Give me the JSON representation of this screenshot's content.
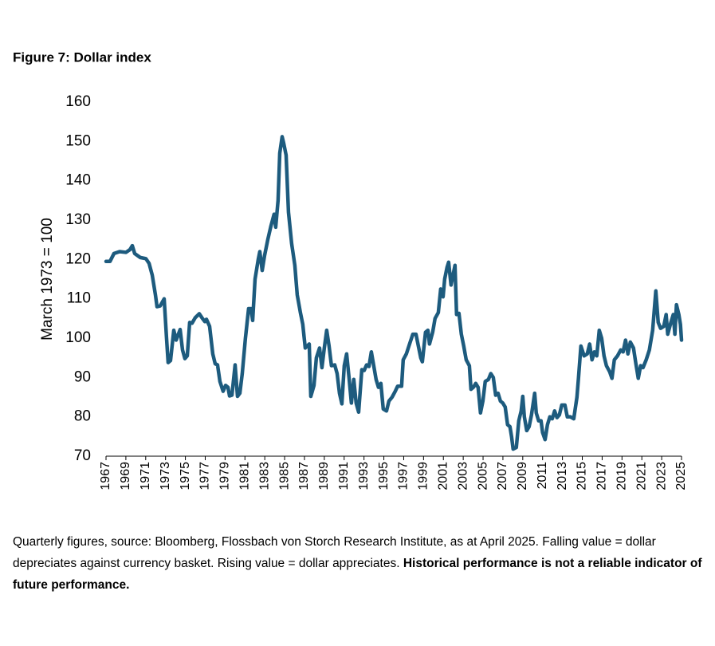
{
  "chart_data": {
    "type": "line",
    "title": "Figure 7: Dollar index",
    "y_label": "March 1973 = 100",
    "footnote": {
      "text": "Quarterly figures, source: Bloomberg, Flossbach von Storch Research Institute, as at April 2025. Falling value = dollar depreciates against currency basket. Rising value = dollar appreciates.",
      "bold": "Historical performance is not a reliable indicator of future performance."
    },
    "x": [
      1967.0,
      1967.4,
      1967.8,
      1968.37,
      1969.01,
      1969.41,
      1969.65,
      1969.89,
      1970.45,
      1971.02,
      1971.34,
      1971.66,
      1971.98,
      1972.14,
      1972.46,
      1972.86,
      1973.1,
      1973.26,
      1973.5,
      1973.83,
      1974.07,
      1974.47,
      1974.71,
      1974.95,
      1975.19,
      1975.43,
      1975.67,
      1975.99,
      1976.4,
      1976.72,
      1976.96,
      1977.12,
      1977.44,
      1977.76,
      1978.0,
      1978.24,
      1978.48,
      1978.8,
      1979.05,
      1979.29,
      1979.45,
      1979.69,
      1980.01,
      1980.25,
      1980.49,
      1980.73,
      1981.05,
      1981.37,
      1981.61,
      1981.78,
      1982.02,
      1982.34,
      1982.5,
      1982.74,
      1982.98,
      1983.3,
      1983.62,
      1983.94,
      1984.1,
      1984.34,
      1984.51,
      1984.75,
      1984.91,
      1985.15,
      1985.39,
      1985.71,
      1986.03,
      1986.27,
      1986.59,
      1986.83,
      1987.08,
      1987.48,
      1987.64,
      1987.96,
      1988.2,
      1988.52,
      1988.76,
      1989.0,
      1989.24,
      1989.48,
      1989.72,
      1990.05,
      1990.29,
      1990.53,
      1990.77,
      1991.01,
      1991.25,
      1991.49,
      1991.73,
      1991.97,
      1992.21,
      1992.46,
      1992.78,
      1993.02,
      1993.26,
      1993.5,
      1993.74,
      1993.98,
      1994.22,
      1994.46,
      1994.7,
      1994.94,
      1995.27,
      1995.51,
      1995.83,
      1996.15,
      1996.39,
      1996.79,
      1996.95,
      1997.27,
      1997.59,
      1997.92,
      1998.24,
      1998.48,
      1998.72,
      1998.88,
      1999.2,
      1999.44,
      1999.6,
      1999.92,
      2000.16,
      2000.49,
      2000.73,
      2000.97,
      2001.13,
      2001.37,
      2001.53,
      2001.77,
      2002.01,
      2002.17,
      2002.33,
      2002.57,
      2002.81,
      2003.05,
      2003.3,
      2003.62,
      2003.78,
      2004.02,
      2004.26,
      2004.5,
      2004.74,
      2004.98,
      2005.22,
      2005.54,
      2005.78,
      2006.03,
      2006.27,
      2006.51,
      2006.75,
      2006.99,
      2007.23,
      2007.47,
      2007.71,
      2007.87,
      2008.03,
      2008.35,
      2008.6,
      2008.84,
      2009.0,
      2009.16,
      2009.4,
      2009.64,
      2009.88,
      2010.2,
      2010.36,
      2010.6,
      2010.84,
      2011.0,
      2011.25,
      2011.49,
      2011.73,
      2011.97,
      2012.21,
      2012.45,
      2012.69,
      2012.93,
      2013.25,
      2013.49,
      2013.81,
      2014.14,
      2014.46,
      2014.62,
      2014.86,
      2015.18,
      2015.5,
      2015.74,
      2015.98,
      2016.22,
      2016.46,
      2016.71,
      2016.95,
      2017.19,
      2017.43,
      2017.75,
      2017.99,
      2018.23,
      2018.55,
      2018.87,
      2019.11,
      2019.36,
      2019.6,
      2019.84,
      2020.16,
      2020.4,
      2020.64,
      2020.88,
      2021.12,
      2021.44,
      2021.76,
      2022.09,
      2022.25,
      2022.41,
      2022.65,
      2022.89,
      2023.21,
      2023.45,
      2023.61,
      2023.93,
      2024.17,
      2024.33,
      2024.49,
      2024.73,
      2024.89,
      2025.0
    ],
    "series": [
      {
        "color": "#1d5b7e",
        "values": [
          119.5,
          119.5,
          121.5,
          122,
          121.8,
          122.5,
          123.5,
          121.5,
          120.5,
          120.2,
          119,
          116,
          111,
          108,
          108.2,
          110,
          100,
          93.8,
          94.3,
          102,
          99.5,
          102.2,
          97,
          94.8,
          95.5,
          104,
          103.8,
          105.2,
          106.2,
          105,
          104.2,
          104.8,
          103,
          96,
          93.5,
          93.2,
          89,
          86.5,
          88,
          87.5,
          85.3,
          85.5,
          93.2,
          85.2,
          86,
          91,
          100,
          107.5,
          107.5,
          104.5,
          115,
          120,
          122,
          117.2,
          121,
          125,
          128.5,
          131.5,
          128.2,
          135,
          147,
          151.2,
          149.5,
          146.5,
          132,
          124,
          118.5,
          111,
          106.5,
          103.5,
          97.5,
          98.5,
          85.2,
          88,
          95,
          97.5,
          92.5,
          97.5,
          102,
          98,
          93,
          93.2,
          91,
          86,
          83.3,
          93,
          96,
          90,
          83.5,
          89.5,
          83.5,
          81.2,
          92,
          91.8,
          93.2,
          92.8,
          96.5,
          93,
          89.5,
          87.5,
          88.5,
          82,
          81.5,
          84,
          85,
          86.5,
          87.8,
          87.8,
          94.5,
          96,
          98.5,
          101,
          101,
          98,
          95,
          94,
          101.5,
          102,
          98.5,
          101.5,
          105,
          106.5,
          112.5,
          110.5,
          115,
          118,
          119.3,
          113.5,
          116.5,
          118.5,
          106,
          106.3,
          101,
          98,
          94.5,
          93,
          87,
          87.5,
          88.5,
          87.5,
          81,
          84,
          89,
          89.5,
          91,
          90,
          85.5,
          86,
          84,
          83.5,
          82.5,
          78,
          77.5,
          75,
          71.8,
          72.2,
          79,
          81.5,
          85.2,
          80,
          76.5,
          77.5,
          80.5,
          86,
          81,
          79,
          79,
          76,
          74.2,
          78,
          80,
          79.5,
          81.5,
          79.8,
          80.5,
          83,
          83,
          80,
          80,
          79.5,
          85,
          90,
          98,
          95.5,
          96,
          98.5,
          94.5,
          96.5,
          95.5,
          102,
          100,
          95.5,
          93,
          91.5,
          89.8,
          94.5,
          95.5,
          97,
          96.5,
          99.5,
          96,
          99,
          97.5,
          93.5,
          89.8,
          93,
          92.5,
          94.5,
          97,
          102,
          107,
          112,
          104,
          102.5,
          103,
          106,
          101,
          104,
          106,
          101,
          108.5,
          106,
          103.5,
          99.5
        ]
      }
    ],
    "xlim": [
      1967,
      2025
    ],
    "xticks": [
      1967,
      1969,
      1971,
      1973,
      1975,
      1977,
      1979,
      1981,
      1983,
      1985,
      1987,
      1989,
      1991,
      1993,
      1995,
      1997,
      1999,
      2001,
      2003,
      2005,
      2007,
      2009,
      2011,
      2013,
      2015,
      2017,
      2019,
      2021,
      2023,
      2025
    ],
    "ylim": [
      70,
      160
    ],
    "yticks": [
      70,
      80,
      90,
      100,
      110,
      120,
      130,
      140,
      150,
      160
    ],
    "grid": false
  }
}
